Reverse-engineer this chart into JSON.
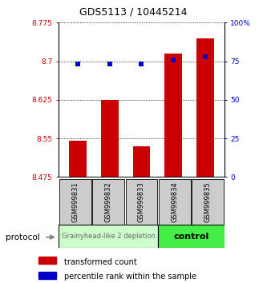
{
  "title": "GDS5113 / 10445214",
  "samples": [
    "GSM999831",
    "GSM999832",
    "GSM999833",
    "GSM999834",
    "GSM999835"
  ],
  "red_values": [
    8.545,
    8.625,
    8.535,
    8.715,
    8.745
  ],
  "blue_values": [
    73,
    73,
    73,
    76,
    78
  ],
  "y_min": 8.475,
  "y_max": 8.775,
  "y_ticks": [
    8.475,
    8.55,
    8.625,
    8.7,
    8.775
  ],
  "y_tick_labels": [
    "8.475",
    "8.55",
    "8.625",
    "8.7",
    "8.775"
  ],
  "y2_ticks": [
    0,
    25,
    50,
    75,
    100
  ],
  "y2_tick_labels": [
    "0",
    "25",
    "50",
    "75",
    "100%"
  ],
  "bar_bottom": 8.475,
  "red_color": "#cc0000",
  "blue_color": "#0000cc",
  "group1_samples": [
    0,
    1,
    2
  ],
  "group2_samples": [
    3,
    4
  ],
  "group1_label": "Grainyhead-like 2 depletion",
  "group2_label": "control",
  "group1_bg": "#ccffcc",
  "group2_bg": "#44ee44",
  "protocol_label": "protocol",
  "legend_red_label": "transformed count",
  "legend_blue_label": "percentile rank within the sample",
  "bar_width": 0.55,
  "xlabel_area_bg": "#cccccc",
  "blue_marker_size": 4,
  "title_fontsize": 9,
  "tick_fontsize": 6.5,
  "sample_fontsize": 6,
  "legend_fontsize": 7,
  "group_label1_fontsize": 6,
  "group_label2_fontsize": 8
}
